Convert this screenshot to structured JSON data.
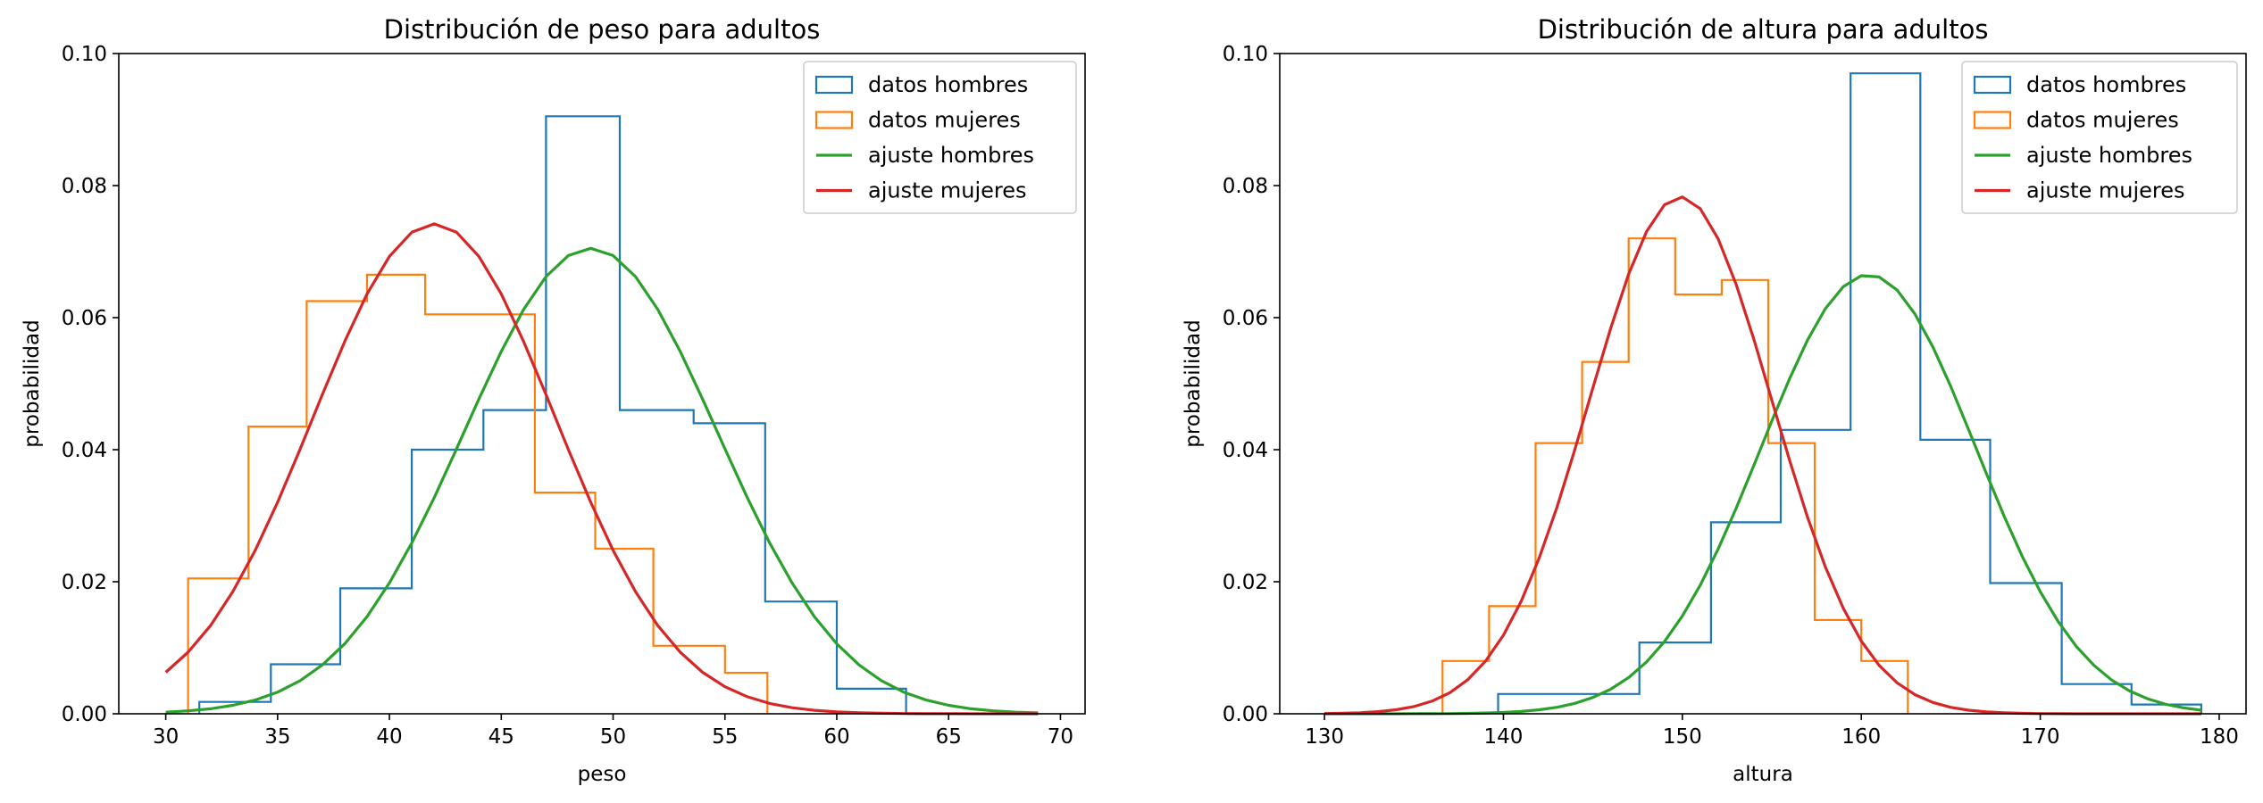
{
  "chart_data": [
    {
      "type": "histogram+line",
      "title": "Distribución de peso para adultos",
      "xlabel": "peso",
      "ylabel": "probabilidad",
      "xlim": [
        27.9,
        71.1
      ],
      "ylim": [
        0,
        0.1
      ],
      "xticks": [
        30,
        35,
        40,
        45,
        50,
        55,
        60,
        65,
        70
      ],
      "yticks": [
        0.0,
        0.02,
        0.04,
        0.06,
        0.08,
        0.1
      ],
      "ytick_labels": [
        "0.00",
        "0.02",
        "0.04",
        "0.06",
        "0.08",
        "0.10"
      ],
      "grid": false,
      "legend_position": "top-right",
      "legend": [
        "datos hombres",
        "datos mujeres",
        "ajuste hombres",
        "ajuste mujeres"
      ],
      "histograms": [
        {
          "name": "datos hombres",
          "color": "#1f77b4",
          "edges": [
            31.5,
            34.7,
            37.8,
            41.0,
            44.2,
            47.0,
            50.3,
            53.6,
            56.8,
            60.0,
            63.1
          ],
          "values": [
            0.0018,
            0.0075,
            0.019,
            0.04,
            0.046,
            0.0905,
            0.046,
            0.044,
            0.017,
            0.0038
          ]
        },
        {
          "name": "datos mujeres",
          "color": "#ff7f0e",
          "edges": [
            31.0,
            33.7,
            36.3,
            39.0,
            41.6,
            46.5,
            49.2,
            51.8,
            55.0,
            56.9
          ],
          "values": [
            0.0205,
            0.0435,
            0.0625,
            0.0665,
            0.0605,
            0.0335,
            0.025,
            0.0103,
            0.0062
          ]
        }
      ],
      "fits": [
        {
          "name": "ajuste hombres",
          "color": "#2ca02c",
          "mean": 49.0,
          "peak": 0.0705,
          "sd": 5.65,
          "x_range": [
            30,
            69
          ]
        },
        {
          "name": "ajuste mujeres",
          "color": "#d62728",
          "mean": 42.0,
          "peak": 0.0742,
          "sd": 5.4,
          "x_range": [
            30,
            69
          ]
        }
      ]
    },
    {
      "type": "histogram+line",
      "title": "Distribución de altura para adultos",
      "xlabel": "altura",
      "ylabel": "probabilidad",
      "xlim": [
        127.5,
        181.5
      ],
      "ylim": [
        0,
        0.1
      ],
      "xticks": [
        130,
        140,
        150,
        160,
        170,
        180
      ],
      "yticks": [
        0.0,
        0.02,
        0.04,
        0.06,
        0.08,
        0.1
      ],
      "ytick_labels": [
        "0.00",
        "0.02",
        "0.04",
        "0.06",
        "0.08",
        "0.10"
      ],
      "grid": false,
      "legend_position": "top-right",
      "legend": [
        "datos hombres",
        "datos mujeres",
        "ajuste hombres",
        "ajuste mujeres"
      ],
      "histograms": [
        {
          "name": "datos hombres",
          "color": "#1f77b4",
          "edges": [
            139.7,
            147.6,
            151.6,
            155.5,
            159.4,
            163.3,
            167.2,
            171.2,
            175.1,
            179.0
          ],
          "values": [
            0.003,
            0.0108,
            0.029,
            0.043,
            0.097,
            0.0415,
            0.0198,
            0.0045,
            0.0014
          ]
        },
        {
          "name": "datos mujeres",
          "color": "#ff7f0e",
          "edges": [
            136.6,
            139.2,
            141.8,
            144.4,
            147.0,
            149.6,
            152.2,
            154.8,
            157.4,
            160.0,
            162.6
          ],
          "values": [
            0.008,
            0.0163,
            0.041,
            0.0533,
            0.072,
            0.0635,
            0.0657,
            0.041,
            0.0142,
            0.008
          ]
        }
      ],
      "fits": [
        {
          "name": "ajuste hombres",
          "color": "#2ca02c",
          "mean": 160.4,
          "peak": 0.0665,
          "sd": 6.0,
          "x_range": [
            130,
            179
          ]
        },
        {
          "name": "ajuste mujeres",
          "color": "#d62728",
          "mean": 149.9,
          "peak": 0.0783,
          "sd": 5.1,
          "x_range": [
            130,
            179
          ]
        }
      ]
    }
  ]
}
